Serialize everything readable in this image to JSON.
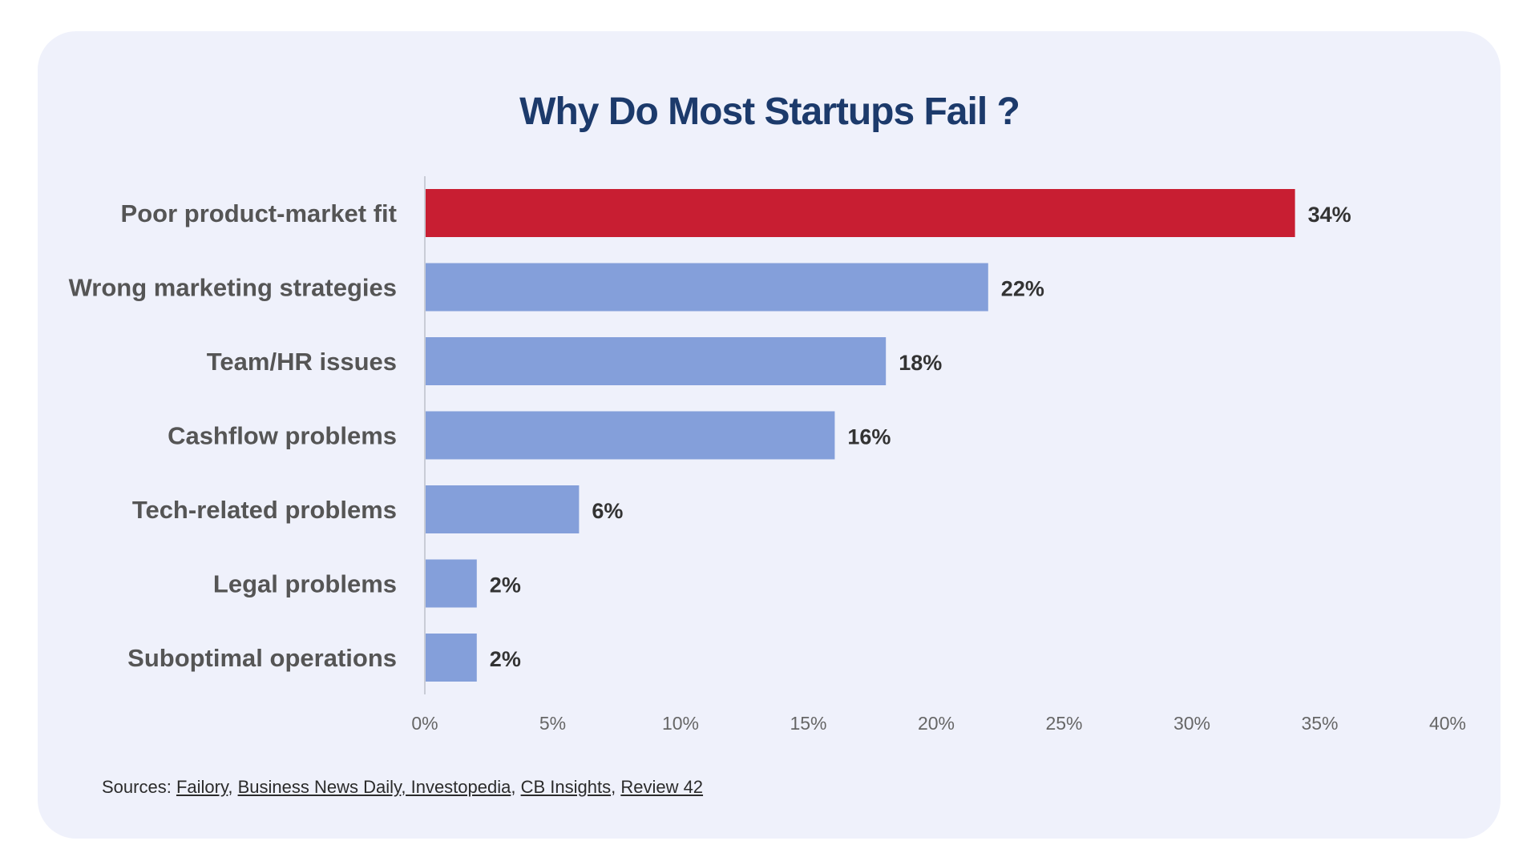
{
  "colors": {
    "card_background": "#eff1fb",
    "highlight_bar": "#c81e32",
    "default_bar": "#849fda",
    "title": "#1c3a6b"
  },
  "chart_data": {
    "type": "bar",
    "orientation": "horizontal",
    "title": "Why Do Most Startups Fail ?",
    "xlabel": "",
    "ylabel": "",
    "categories": [
      "Poor product-market fit",
      "Wrong marketing strategies",
      "Team/HR issues",
      "Cashflow problems",
      "Tech-related problems",
      "Legal problems",
      "Suboptimal operations"
    ],
    "values": [
      34,
      22,
      18,
      16,
      6,
      2,
      2
    ],
    "value_labels": [
      "34%",
      "22%",
      "18%",
      "16%",
      "6%",
      "2%",
      "2%"
    ],
    "highlight_index": 0,
    "xlim": [
      0,
      40
    ],
    "xticks": [
      "0%",
      "5%",
      "10%",
      "15%",
      "20%",
      "25%",
      "30%",
      "35%",
      "40%"
    ],
    "grid": false,
    "legend": "none"
  },
  "sources": {
    "prefix": "Sources:",
    "items": [
      "Failory",
      "Business News Daily",
      " Investopedia",
      "CB Insights",
      "Review 42"
    ]
  }
}
